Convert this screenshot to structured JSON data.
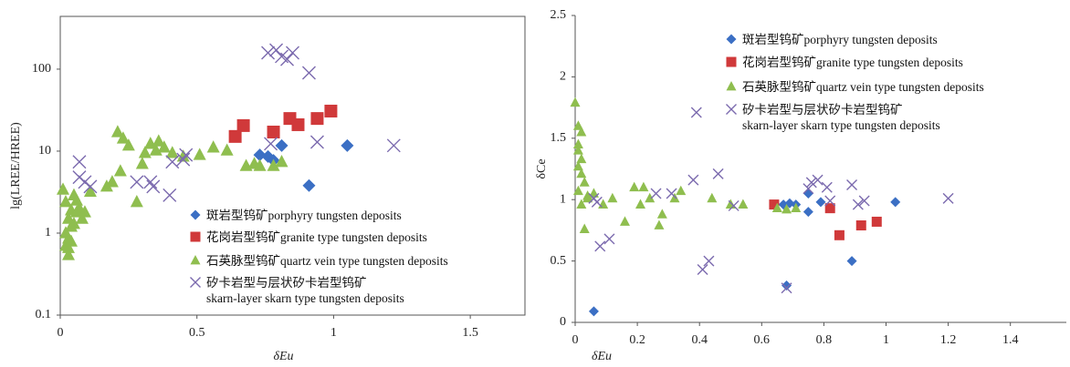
{
  "chart_data": [
    {
      "type": "scatter",
      "xlabel": "δEu",
      "ylabel": "lg(LREE/HREE)",
      "log_y": true,
      "frame": true,
      "xlim": [
        0,
        1.7
      ],
      "ylim": [
        0.1,
        440
      ],
      "xticks": [
        0,
        0.5,
        1,
        1.5
      ],
      "yticks": [
        0.1,
        1,
        10,
        100
      ],
      "series": [
        {
          "name": "斑岩型钨矿porphyry tungsten deposits",
          "color": "#3b6fc4",
          "marker": "diamond",
          "x": [
            0.73,
            0.76,
            0.78,
            0.81,
            0.91,
            1.05
          ],
          "values": [
            9.0,
            8.6,
            7.7,
            11.7,
            3.8,
            11.7
          ]
        },
        {
          "name": "花岗岩型钨矿granite type tungsten deposits",
          "color": "#d0393a",
          "marker": "square",
          "x": [
            0.64,
            0.67,
            0.78,
            0.84,
            0.87,
            0.94,
            0.99
          ],
          "values": [
            15.1,
            20.5,
            17.1,
            25,
            21,
            25,
            30.8
          ]
        },
        {
          "name": "石英脉型钨矿quartz vein type tungsten deposits",
          "color": "#8fbe4f",
          "marker": "triangle",
          "x": [
            0.01,
            0.02,
            0.03,
            0.02,
            0.02,
            0.03,
            0.04,
            0.05,
            0.05,
            0.06,
            0.07,
            0.08,
            0.03,
            0.04,
            0.06,
            0.03,
            0.04,
            0.09,
            0.11,
            0.17,
            0.19,
            0.22,
            0.21,
            0.23,
            0.25,
            0.28,
            0.3,
            0.31,
            0.33,
            0.35,
            0.36,
            0.38,
            0.41,
            0.45,
            0.51,
            0.56,
            0.61,
            0.68,
            0.71,
            0.73,
            0.78,
            0.81
          ],
          "values": [
            3.4,
            2.4,
            1.5,
            1.0,
            0.7,
            0.54,
            1.9,
            2.9,
            1.3,
            1.8,
            2.0,
            1.5,
            0.86,
            1.2,
            2.5,
            0.66,
            0.79,
            1.8,
            3.2,
            3.7,
            4.2,
            5.7,
            17.1,
            14.3,
            11.7,
            2.4,
            7.0,
            9.5,
            12.3,
            10.2,
            13.2,
            11.1,
            9.5,
            8.6,
            9.0,
            11.1,
            10.2,
            6.6,
            7.0,
            6.6,
            6.6,
            7.4
          ]
        },
        {
          "name": "矽卡岩型与层状矽卡岩型钨矿\nskarn-layer  skarn type tungsten deposits",
          "color": "#7b6aae",
          "marker": "cross",
          "x": [
            0.07,
            0.07,
            0.09,
            0.11,
            0.28,
            0.33,
            0.34,
            0.4,
            0.41,
            0.45,
            0.46,
            0.76,
            0.79,
            0.81,
            0.83,
            0.85,
            0.91,
            0.94,
            1.22,
            0.77
          ],
          "values": [
            7.4,
            4.8,
            4.2,
            3.7,
            4.2,
            4.2,
            3.7,
            2.9,
            7.4,
            7.9,
            9.0,
            158,
            171,
            143,
            132,
            158,
            90,
            12.9,
            11.7,
            12.3
          ]
        }
      ]
    },
    {
      "type": "scatter",
      "xlabel": "δEu",
      "ylabel": "δCe",
      "log_y": false,
      "frame": false,
      "xlim": [
        0,
        1.58
      ],
      "ylim": [
        0,
        2.5
      ],
      "xticks": [
        0,
        0.2,
        0.4,
        0.6,
        0.8,
        1,
        1.2,
        1.4
      ],
      "yticks": [
        0,
        0.5,
        1,
        1.5,
        2,
        2.5
      ],
      "series": [
        {
          "name": "斑岩型钨矿porphyry tungsten deposits",
          "color": "#3b6fc4",
          "marker": "diamond",
          "x": [
            0.06,
            0.67,
            0.69,
            0.71,
            0.75,
            0.75,
            0.79,
            0.89,
            1.03,
            0.68
          ],
          "values": [
            0.09,
            0.96,
            0.97,
            0.96,
            0.9,
            1.05,
            0.98,
            0.5,
            0.98,
            0.3
          ]
        },
        {
          "name": "花岗岩型钨矿granite type tungsten deposits",
          "color": "#d0393a",
          "marker": "square",
          "x": [
            0.64,
            0.82,
            0.85,
            0.92,
            0.97
          ],
          "values": [
            0.96,
            0.93,
            0.71,
            0.79,
            0.82
          ]
        },
        {
          "name": "石英脉型钨矿quartz vein type tungsten deposits",
          "color": "#8fbe4f",
          "marker": "triangle",
          "x": [
            0,
            0.01,
            0.02,
            0.01,
            0.01,
            0.02,
            0.01,
            0.02,
            0.03,
            0.01,
            0.04,
            0.02,
            0.04,
            0.06,
            0.03,
            0.09,
            0.12,
            0.16,
            0.19,
            0.22,
            0.21,
            0.24,
            0.27,
            0.28,
            0.32,
            0.34,
            0.44,
            0.5,
            0.54,
            0.65,
            0.68,
            0.71
          ],
          "values": [
            1.79,
            1.6,
            1.55,
            1.45,
            1.4,
            1.33,
            1.27,
            1.21,
            1.14,
            1.07,
            1.03,
            0.96,
            1.01,
            1.05,
            0.76,
            0.96,
            1.01,
            0.82,
            1.1,
            1.1,
            0.96,
            1.01,
            0.79,
            0.88,
            1.01,
            1.07,
            1.01,
            0.96,
            0.96,
            0.93,
            0.92,
            0.93
          ]
        },
        {
          "name": "矽卡岩型与层状矽卡岩型钨矿\nskarn-layer  skarn type tungsten deposits",
          "color": "#7b6aae",
          "marker": "cross",
          "x": [
            0.06,
            0.07,
            0.08,
            0.11,
            0.26,
            0.31,
            0.39,
            0.38,
            0.41,
            0.43,
            0.46,
            0.51,
            0.68,
            0.75,
            0.76,
            0.78,
            0.81,
            0.82,
            0.89,
            0.91,
            0.93,
            1.2
          ],
          "values": [
            1.01,
            0.98,
            0.62,
            0.68,
            1.05,
            1.05,
            1.71,
            1.16,
            0.43,
            0.5,
            1.21,
            0.95,
            0.28,
            1.09,
            1.14,
            1.16,
            1.1,
            0.99,
            1.12,
            0.96,
            0.99,
            1.01
          ]
        }
      ]
    }
  ]
}
